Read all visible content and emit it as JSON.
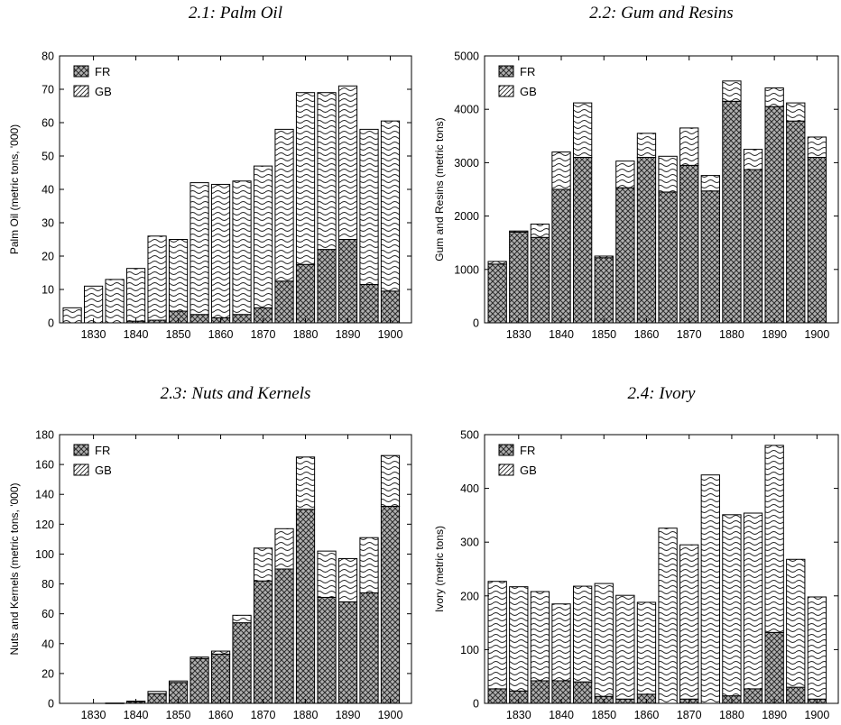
{
  "chart_data": [
    {
      "type": "bar",
      "stacked": true,
      "title": "2.1: Palm Oil",
      "ylabel": "Palm Oil (metric tons, '000)",
      "ylim": [
        0,
        80
      ],
      "yticks": [
        0,
        10,
        20,
        30,
        40,
        50,
        60,
        70,
        80
      ],
      "xticks": [
        1830,
        1840,
        1850,
        1860,
        1870,
        1880,
        1890,
        1900
      ],
      "xlim": [
        1822,
        1905
      ],
      "x": [
        1825,
        1830,
        1835,
        1840,
        1845,
        1850,
        1855,
        1860,
        1865,
        1870,
        1875,
        1880,
        1885,
        1890,
        1895,
        1900
      ],
      "legend": "top-left",
      "series": [
        {
          "name": "FR",
          "pattern": "crosshatch",
          "values": [
            0,
            0,
            0,
            0.5,
            0.8,
            3.5,
            2.5,
            1.5,
            2.5,
            4.5,
            12.5,
            17.5,
            22,
            25,
            11.5,
            9.5
          ]
        },
        {
          "name": "GB",
          "pattern": "wavy",
          "values": [
            4.5,
            11,
            13,
            15.8,
            25.2,
            21.5,
            39.5,
            40,
            40,
            42.5,
            45.5,
            51.5,
            47,
            46,
            46.5,
            51
          ]
        }
      ]
    },
    {
      "type": "bar",
      "stacked": true,
      "title": "2.2: Gum and Resins",
      "ylabel": "Gum and Resins (metric tons)",
      "ylim": [
        0,
        5000
      ],
      "yticks": [
        0,
        1000,
        2000,
        3000,
        4000,
        5000
      ],
      "xticks": [
        1830,
        1840,
        1850,
        1860,
        1870,
        1880,
        1890,
        1900
      ],
      "xlim": [
        1822,
        1905
      ],
      "x": [
        1825,
        1830,
        1835,
        1840,
        1845,
        1850,
        1855,
        1860,
        1865,
        1870,
        1875,
        1880,
        1885,
        1890,
        1895,
        1900
      ],
      "legend": "top-left",
      "series": [
        {
          "name": "FR",
          "pattern": "crosshatch",
          "values": [
            1100,
            1700,
            1600,
            2500,
            3100,
            1220,
            2530,
            3100,
            2450,
            2950,
            2470,
            4150,
            2870,
            4050,
            3780,
            3100
          ]
        },
        {
          "name": "GB",
          "pattern": "wavy",
          "values": [
            50,
            20,
            250,
            700,
            1020,
            30,
            500,
            450,
            670,
            700,
            290,
            380,
            380,
            350,
            340,
            380
          ]
        }
      ]
    },
    {
      "type": "bar",
      "stacked": true,
      "title": "2.3: Nuts and Kernels",
      "ylabel": "Nuts and Kernels (metric tons, '000)",
      "ylim": [
        0,
        180
      ],
      "yticks": [
        0,
        20,
        40,
        60,
        80,
        100,
        120,
        140,
        160,
        180
      ],
      "xticks": [
        1830,
        1840,
        1850,
        1860,
        1870,
        1880,
        1890,
        1900
      ],
      "xlim": [
        1822,
        1905
      ],
      "x": [
        1825,
        1830,
        1835,
        1840,
        1845,
        1850,
        1855,
        1860,
        1865,
        1870,
        1875,
        1880,
        1885,
        1890,
        1895,
        1900
      ],
      "legend": "top-left",
      "series": [
        {
          "name": "FR",
          "pattern": "crosshatch",
          "values": [
            0,
            0,
            0.2,
            1.2,
            6.5,
            14,
            30,
            33,
            54,
            82,
            90,
            130,
            71,
            68,
            74,
            132
          ]
        },
        {
          "name": "GB",
          "pattern": "wavy",
          "values": [
            0,
            0,
            0,
            0.3,
            1.5,
            1,
            1,
            2,
            5,
            22,
            27,
            35,
            31,
            29,
            37,
            34
          ]
        }
      ]
    },
    {
      "type": "bar",
      "stacked": true,
      "title": "2.4: Ivory",
      "ylabel": "Ivory (metric tons)",
      "ylim": [
        0,
        500
      ],
      "yticks": [
        0,
        100,
        200,
        300,
        400,
        500
      ],
      "xticks": [
        1830,
        1840,
        1850,
        1860,
        1870,
        1880,
        1890,
        1900
      ],
      "xlim": [
        1822,
        1905
      ],
      "x": [
        1825,
        1830,
        1835,
        1840,
        1845,
        1850,
        1855,
        1860,
        1865,
        1870,
        1875,
        1880,
        1885,
        1890,
        1895,
        1900
      ],
      "legend": "top-left",
      "series": [
        {
          "name": "FR",
          "pattern": "crosshatch",
          "values": [
            27,
            23,
            42,
            42,
            40,
            13,
            8,
            17,
            0,
            8,
            0,
            14,
            27,
            132,
            30,
            8
          ]
        },
        {
          "name": "GB",
          "pattern": "wavy",
          "values": [
            200,
            194,
            166,
            143,
            178,
            210,
            193,
            171,
            326,
            287,
            425,
            337,
            327,
            348,
            238,
            190
          ]
        }
      ]
    }
  ]
}
